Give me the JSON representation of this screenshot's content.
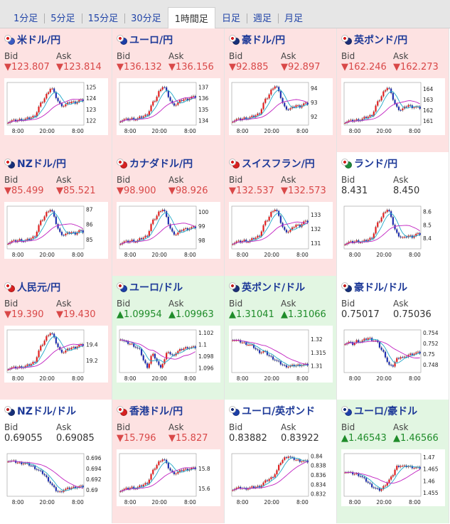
{
  "tabs": [
    {
      "label": "1分足",
      "active": false
    },
    {
      "label": "5分足",
      "active": false
    },
    {
      "label": "15分足",
      "active": false
    },
    {
      "label": "30分足",
      "active": false
    },
    {
      "label": "1時間足",
      "active": true
    },
    {
      "label": "日足",
      "active": false
    },
    {
      "label": "週足",
      "active": false
    },
    {
      "label": "月足",
      "active": false
    }
  ],
  "labels": {
    "bid": "Bid",
    "ask": "Ask"
  },
  "colors": {
    "down_bg": "#fde2e2",
    "up_bg": "#e2f6e2",
    "down_text": "#d94848",
    "up_text": "#1f8c2a",
    "link": "#1e3a98",
    "ma_short": "#20a8c8",
    "ma_long": "#c020c0"
  },
  "x_ticks": [
    "8:00",
    "20:00",
    "8:00"
  ],
  "pairs": [
    {
      "name": "米ドル/円",
      "trend": "down",
      "bid": "▼123.807",
      "ask": "▼123.814",
      "flag_colors": [
        "#3b5cc4",
        "#d82020"
      ],
      "chart_data": {
        "type": "candlestick",
        "y_ticks": [
          "125",
          "124",
          "123",
          "122"
        ],
        "ylim": [
          121.6,
          125.4
        ],
        "series": [
          121.9,
          122.0,
          122.0,
          122.1,
          122.1,
          122.2,
          122.3,
          122.5,
          123.4,
          123.8,
          124.5,
          125.0,
          124.2,
          123.5,
          123.3,
          123.5,
          123.7,
          123.6,
          123.8,
          123.8
        ]
      }
    },
    {
      "name": "ユーロ/円",
      "trend": "down",
      "bid": "▼136.132",
      "ask": "▼136.156",
      "flag_colors": [
        "#1d3fa8",
        "#d82020"
      ],
      "chart_data": {
        "type": "candlestick",
        "y_ticks": [
          "137",
          "136",
          "135",
          "134"
        ],
        "ylim": [
          133.6,
          137.4
        ],
        "series": [
          134.0,
          134.1,
          134.1,
          134.2,
          134.1,
          134.3,
          134.4,
          134.6,
          135.5,
          135.9,
          136.8,
          137.1,
          136.3,
          135.5,
          135.4,
          135.7,
          135.9,
          135.9,
          136.1,
          136.1
        ]
      }
    },
    {
      "name": "豪ドル/円",
      "trend": "down",
      "bid": "▼92.885",
      "ask": "▼92.897",
      "flag_colors": [
        "#16307a",
        "#d82020"
      ],
      "chart_data": {
        "type": "candlestick",
        "y_ticks": [
          "94",
          "93",
          "92"
        ],
        "ylim": [
          91.4,
          94.4
        ],
        "series": [
          91.7,
          91.8,
          91.8,
          91.9,
          91.9,
          92.0,
          92.1,
          92.3,
          93.1,
          93.4,
          94.0,
          94.2,
          93.5,
          92.7,
          92.5,
          92.6,
          92.8,
          92.7,
          92.9,
          92.9
        ]
      }
    },
    {
      "name": "英ポンド/円",
      "trend": "down",
      "bid": "▼162.246",
      "ask": "▼162.273",
      "flag_colors": [
        "#1d2f78",
        "#d82020"
      ],
      "chart_data": {
        "type": "candlestick",
        "y_ticks": [
          "164",
          "163",
          "162",
          "161"
        ],
        "ylim": [
          160.6,
          164.6
        ],
        "series": [
          160.9,
          161.0,
          161.0,
          161.1,
          161.1,
          161.3,
          161.4,
          161.6,
          162.6,
          163.1,
          163.9,
          164.2,
          163.2,
          162.3,
          162.0,
          162.2,
          162.5,
          162.3,
          162.3,
          162.2
        ]
      }
    },
    {
      "name": "NZドル/円",
      "trend": "down",
      "bid": "▼85.499",
      "ask": "▼85.521",
      "flag_colors": [
        "#16307a",
        "#d82020"
      ],
      "chart_data": {
        "type": "candlestick",
        "y_ticks": [
          "87",
          "86",
          "85"
        ],
        "ylim": [
          84.4,
          87.2
        ],
        "series": [
          84.8,
          84.9,
          84.9,
          85.0,
          84.9,
          85.0,
          85.1,
          85.3,
          86.1,
          86.4,
          86.9,
          87.0,
          86.2,
          85.5,
          85.3,
          85.4,
          85.5,
          85.4,
          85.6,
          85.5
        ]
      }
    },
    {
      "name": "カナダドル/円",
      "trend": "down",
      "bid": "▼98.900",
      "ask": "▼98.926",
      "flag_colors": [
        "#d82020",
        "#d82020"
      ],
      "chart_data": {
        "type": "candlestick",
        "y_ticks": [
          "100",
          "99",
          "98"
        ],
        "ylim": [
          97.4,
          100.4
        ],
        "series": [
          97.8,
          97.9,
          97.9,
          98.0,
          97.9,
          98.1,
          98.2,
          98.4,
          99.3,
          99.6,
          100.1,
          100.2,
          99.3,
          98.6,
          98.4,
          98.6,
          98.8,
          98.8,
          98.9,
          98.9
        ]
      }
    },
    {
      "name": "スイスフラン/円",
      "trend": "down",
      "bid": "▼132.537",
      "ask": "▼132.573",
      "flag_colors": [
        "#d82020",
        "#d82020"
      ],
      "chart_data": {
        "type": "candlestick",
        "y_ticks": [
          "133",
          "132",
          "131"
        ],
        "ylim": [
          130.6,
          133.6
        ],
        "series": [
          131.0,
          131.1,
          131.1,
          131.2,
          131.1,
          131.3,
          131.4,
          131.6,
          132.4,
          132.7,
          133.3,
          133.4,
          132.6,
          131.9,
          131.8,
          132.0,
          132.3,
          132.2,
          132.5,
          132.5
        ]
      }
    },
    {
      "name": "ランド/円",
      "trend": "flat",
      "bid": "8.431",
      "ask": "8.450",
      "flag_colors": [
        "#1e8a3a",
        "#d82020"
      ],
      "chart_data": {
        "type": "candlestick",
        "y_ticks": [
          "8.6",
          "8.5",
          "8.4"
        ],
        "ylim": [
          8.32,
          8.64
        ],
        "series": [
          8.36,
          8.37,
          8.37,
          8.38,
          8.37,
          8.38,
          8.39,
          8.41,
          8.5,
          8.54,
          8.6,
          8.62,
          8.52,
          8.44,
          8.41,
          8.4,
          8.42,
          8.41,
          8.43,
          8.43
        ]
      }
    },
    {
      "name": "人民元/円",
      "trend": "down",
      "bid": "▼19.390",
      "ask": "▼19.430",
      "flag_colors": [
        "#d82020",
        "#d82020"
      ],
      "chart_data": {
        "type": "candlestick",
        "y_ticks": [
          "19.4",
          "19.2"
        ],
        "ylim": [
          19.05,
          19.58
        ],
        "series": [
          19.1,
          19.11,
          19.11,
          19.12,
          19.12,
          19.14,
          19.16,
          19.2,
          19.35,
          19.42,
          19.52,
          19.55,
          19.44,
          19.33,
          19.3,
          19.33,
          19.36,
          19.36,
          19.39,
          19.39
        ]
      }
    },
    {
      "name": "ユーロ/ドル",
      "trend": "up",
      "bid": "▲1.09954",
      "ask": "▲1.09963",
      "flag_colors": [
        "#1d3fa8",
        "#c02020"
      ],
      "chart_data": {
        "type": "candlestick",
        "y_ticks": [
          "1.102",
          "1.1",
          "1.098",
          "1.096"
        ],
        "ylim": [
          1.0952,
          1.1025
        ],
        "series": [
          1.101,
          1.1005,
          1.1002,
          1.1,
          1.0995,
          1.099,
          1.097,
          1.096,
          1.0985,
          1.0975,
          1.096,
          1.097,
          1.099,
          1.098,
          1.0985,
          1.099,
          1.0993,
          1.0995,
          1.0995,
          1.0995
        ]
      }
    },
    {
      "name": "英ポンド/ドル",
      "trend": "up",
      "bid": "▲1.31041",
      "ask": "▲1.31066",
      "flag_colors": [
        "#1d2f78",
        "#c02020"
      ],
      "chart_data": {
        "type": "candlestick",
        "y_ticks": [
          "1.32",
          "1.315",
          "1.31"
        ],
        "ylim": [
          1.3075,
          1.3235
        ],
        "series": [
          1.32,
          1.3195,
          1.319,
          1.3185,
          1.318,
          1.3175,
          1.316,
          1.315,
          1.3155,
          1.314,
          1.313,
          1.312,
          1.311,
          1.31,
          1.3098,
          1.31,
          1.3102,
          1.3103,
          1.3104,
          1.3104
        ]
      }
    },
    {
      "name": "豪ドル/ドル",
      "trend": "flat",
      "bid": "0.75017",
      "ask": "0.75036",
      "flag_colors": [
        "#16307a",
        "#c02020"
      ],
      "chart_data": {
        "type": "candlestick",
        "y_ticks": [
          "0.754",
          "0.752",
          "0.75",
          "0.748"
        ],
        "ylim": [
          0.7465,
          0.7545
        ],
        "series": [
          0.752,
          0.7522,
          0.7518,
          0.7525,
          0.7523,
          0.7527,
          0.753,
          0.7526,
          0.7524,
          0.751,
          0.75,
          0.748,
          0.7475,
          0.749,
          0.7495,
          0.7492,
          0.7498,
          0.75,
          0.7502,
          0.7502
        ]
      }
    },
    {
      "name": "NZドル/ドル",
      "trend": "flat",
      "bid": "0.69055",
      "ask": "0.69085",
      "flag_colors": [
        "#16307a",
        "#c02020"
      ],
      "chart_data": {
        "type": "candlestick",
        "y_ticks": [
          "0.696",
          "0.694",
          "0.692",
          "0.69"
        ],
        "ylim": [
          0.6888,
          0.6968
        ],
        "series": [
          0.6955,
          0.6954,
          0.6952,
          0.695,
          0.695,
          0.6948,
          0.6945,
          0.694,
          0.6935,
          0.693,
          0.692,
          0.691,
          0.69,
          0.6895,
          0.69,
          0.6902,
          0.6904,
          0.6905,
          0.6906,
          0.6906
        ]
      }
    },
    {
      "name": "香港ドル/円",
      "trend": "down",
      "bid": "▼15.796",
      "ask": "▼15.827",
      "flag_colors": [
        "#d82020",
        "#d82020"
      ],
      "chart_data": {
        "type": "candlestick",
        "y_ticks": [
          "15.8",
          "15.6"
        ],
        "ylim": [
          15.52,
          15.95
        ],
        "series": [
          15.58,
          15.59,
          15.6,
          15.61,
          15.6,
          15.62,
          15.64,
          15.66,
          15.76,
          15.82,
          15.88,
          15.9,
          15.82,
          15.76,
          15.75,
          15.77,
          15.79,
          15.79,
          15.8,
          15.8
        ]
      }
    },
    {
      "name": "ユーロ/英ポンド",
      "trend": "flat",
      "bid": "0.83882",
      "ask": "0.83922",
      "flag_colors": [
        "#1d3fa8",
        "#1d2f78"
      ],
      "chart_data": {
        "type": "candlestick",
        "y_ticks": [
          "0.84",
          "0.838",
          "0.836",
          "0.834",
          "0.832"
        ],
        "ylim": [
          0.8315,
          0.8405
        ],
        "series": [
          0.833,
          0.8332,
          0.8333,
          0.8331,
          0.8332,
          0.8334,
          0.8335,
          0.8336,
          0.8345,
          0.835,
          0.8355,
          0.8365,
          0.8385,
          0.8395,
          0.84,
          0.8395,
          0.8392,
          0.839,
          0.8389,
          0.8388
        ]
      }
    },
    {
      "name": "ユーロ/豪ドル",
      "trend": "up",
      "bid": "▲1.46543",
      "ask": "▲1.46566",
      "flag_colors": [
        "#1d3fa8",
        "#16307a"
      ],
      "chart_data": {
        "type": "candlestick",
        "y_ticks": [
          "1.47",
          "1.465",
          "1.46",
          "1.455"
        ],
        "ylim": [
          1.4535,
          1.4715
        ],
        "series": [
          1.464,
          1.4635,
          1.463,
          1.4628,
          1.462,
          1.4605,
          1.459,
          1.4575,
          1.4565,
          1.456,
          1.458,
          1.46,
          1.462,
          1.466,
          1.4665,
          1.466,
          1.4662,
          1.4658,
          1.4655,
          1.4654
        ]
      }
    }
  ]
}
